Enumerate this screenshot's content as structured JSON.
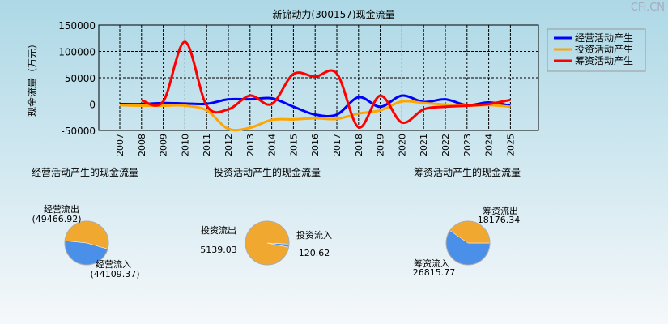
{
  "watermark": "CFi.CN",
  "chart_data": {
    "type": "line",
    "title": "新锦动力(300157)现金流量",
    "ylabel": "现金流量（万元）",
    "ylim": [
      -50000,
      150000
    ],
    "yticks": [
      150000,
      100000,
      50000,
      0,
      -50000
    ],
    "x": [
      "2007",
      "2008",
      "2009",
      "2010",
      "2011",
      "2012",
      "2013",
      "2014",
      "2015",
      "2016",
      "2017",
      "2018",
      "2019",
      "2020",
      "2021",
      "2022",
      "2023",
      "2024",
      "2025"
    ],
    "grid": true,
    "legend_position": "top-right",
    "series": [
      {
        "name": "经营活动产生",
        "color": "#0000ff",
        "values": [
          0,
          0,
          2000,
          1000,
          500,
          9000,
          9000,
          11000,
          -5000,
          -20000,
          -20000,
          13000,
          -5000,
          16000,
          4000,
          9000,
          -2000,
          3000,
          -3000
        ]
      },
      {
        "name": "投资活动产生",
        "color": "#ffa500",
        "values": [
          -2000,
          -3000,
          -3000,
          -3000,
          -12000,
          -47000,
          -45000,
          -30000,
          -29000,
          -27000,
          -28000,
          -18000,
          -12000,
          5000,
          2000,
          -1000,
          -3000,
          -2000,
          -5000
        ]
      },
      {
        "name": "筹资活动产生",
        "color": "#ff0000",
        "values": [
          null,
          7000,
          5000,
          118000,
          -3000,
          -10000,
          16000,
          0,
          57000,
          52000,
          58000,
          -44000,
          16000,
          -35000,
          -10000,
          -5000,
          -3000,
          0,
          8000
        ]
      }
    ]
  },
  "pies": [
    {
      "title": "经营活动产生的现金流量",
      "out_label": "经营流出",
      "out_value": "(49466.92)",
      "in_label": "经营流入",
      "in_value": "(44109.37)",
      "out": 49466.92,
      "in": 44109.37
    },
    {
      "title": "投资活动产生的现金流量",
      "out_label": "投资流出",
      "out_value": "5139.03",
      "in_label": "投资流入",
      "in_value": "120.62",
      "out": 5139.03,
      "in": 120.62
    },
    {
      "title": "筹资活动产生的现金流量",
      "out_label": "筹资流出",
      "out_value": "18176.34",
      "in_label": "筹资流入",
      "in_value": "26815.77",
      "out": 18176.34,
      "in": 26815.77
    }
  ]
}
